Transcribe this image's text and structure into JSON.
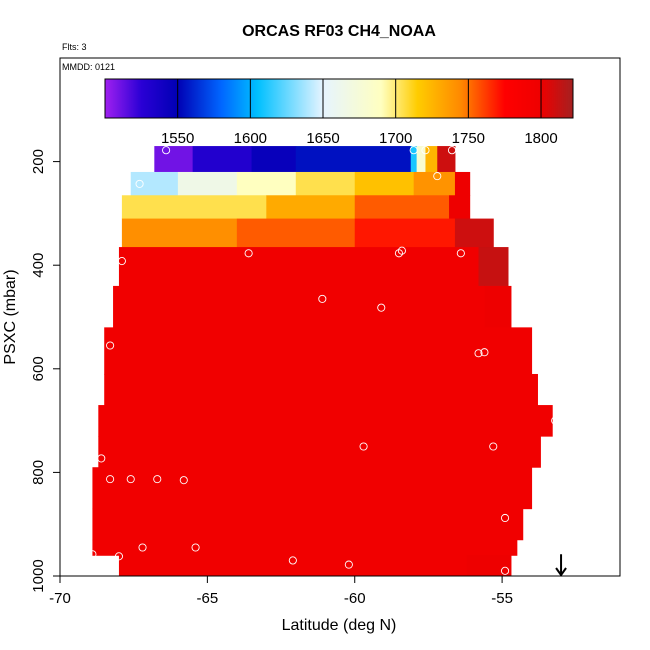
{
  "chart_data": {
    "type": "heatmap",
    "title": "ORCAS RF03 CH4_NOAA",
    "notes": {
      "flights": "Flts: 3",
      "date": "MMDD: 0121"
    },
    "xlabel": "Latitude (deg N)",
    "ylabel": "PSXC (mbar)",
    "xlim": [
      -70,
      -51
    ],
    "ylim": [
      1000,
      0
    ],
    "x_ticks": [
      -70,
      -65,
      -60,
      -55
    ],
    "y_ticks": [
      200,
      400,
      600,
      800,
      1000
    ],
    "colorbar": {
      "range": [
        1500,
        1822
      ],
      "ticks": [
        1550,
        1600,
        1650,
        1700,
        1750,
        1800
      ],
      "stops": [
        {
          "v": 1500,
          "c": "#a020f0"
        },
        {
          "v": 1525,
          "c": "#2a00d5"
        },
        {
          "v": 1550,
          "c": "#0000b4"
        },
        {
          "v": 1580,
          "c": "#0066ff"
        },
        {
          "v": 1605,
          "c": "#00c0ff"
        },
        {
          "v": 1650,
          "c": "#e6f4ff"
        },
        {
          "v": 1690,
          "c": "#ffffc0"
        },
        {
          "v": 1715,
          "c": "#ffcc00"
        },
        {
          "v": 1745,
          "c": "#ff8800"
        },
        {
          "v": 1775,
          "c": "#ff0000"
        },
        {
          "v": 1800,
          "c": "#ee0000"
        },
        {
          "v": 1822,
          "c": "#a52020"
        }
      ]
    },
    "rows": [
      {
        "p0": 170,
        "p1": 220,
        "x0": -66.8,
        "x1": -56.6,
        "cells": [
          {
            "x0": -66.8,
            "x1": -65.5,
            "v": 1510
          },
          {
            "x0": -65.5,
            "x1": -63.5,
            "v": 1530
          },
          {
            "x0": -63.5,
            "x1": -62.0,
            "v": 1545
          },
          {
            "x0": -62.0,
            "x1": -58.1,
            "v": 1555
          },
          {
            "x0": -58.1,
            "x1": -57.9,
            "v": 1610
          },
          {
            "x0": -57.9,
            "x1": -57.6,
            "v": 1680
          },
          {
            "x0": -57.6,
            "x1": -57.2,
            "v": 1725
          },
          {
            "x0": -57.2,
            "x1": -56.6,
            "v": 1810
          }
        ]
      },
      {
        "p0": 220,
        "p1": 265,
        "x0": -67.6,
        "x1": -56.1,
        "cells": [
          {
            "x0": -67.6,
            "x1": -66.0,
            "v": 1640
          },
          {
            "x0": -66.0,
            "x1": -64.0,
            "v": 1665
          },
          {
            "x0": -64.0,
            "x1": -62.0,
            "v": 1690
          },
          {
            "x0": -62.0,
            "x1": -60.0,
            "v": 1705
          },
          {
            "x0": -60.0,
            "x1": -58.0,
            "v": 1720
          },
          {
            "x0": -58.0,
            "x1": -56.6,
            "v": 1740
          },
          {
            "x0": -56.6,
            "x1": -56.1,
            "v": 1800
          }
        ]
      },
      {
        "p0": 265,
        "p1": 310,
        "x0": -67.9,
        "x1": -56.1,
        "cells": [
          {
            "x0": -67.9,
            "x1": -63.0,
            "v": 1705
          },
          {
            "x0": -63.0,
            "x1": -60.0,
            "v": 1730
          },
          {
            "x0": -60.0,
            "x1": -56.8,
            "v": 1755
          },
          {
            "x0": -56.8,
            "x1": -56.1,
            "v": 1800
          }
        ]
      },
      {
        "p0": 310,
        "p1": 365,
        "x0": -67.9,
        "x1": -55.3,
        "cells": [
          {
            "x0": -67.9,
            "x1": -64.0,
            "v": 1742
          },
          {
            "x0": -64.0,
            "x1": -60.0,
            "v": 1755
          },
          {
            "x0": -60.0,
            "x1": -56.6,
            "v": 1770
          },
          {
            "x0": -56.6,
            "x1": -55.3,
            "v": 1810
          }
        ]
      },
      {
        "p0": 365,
        "p1": 440,
        "x0": -68.0,
        "x1": -54.8,
        "cells": [
          {
            "x0": -68.0,
            "x1": -55.8,
            "v": 1795
          },
          {
            "x0": -55.8,
            "x1": -54.8,
            "v": 1812
          }
        ]
      },
      {
        "p0": 440,
        "p1": 520,
        "x0": -68.2,
        "x1": -54.7,
        "cells": [
          {
            "x0": -68.2,
            "x1": -55.6,
            "v": 1795
          },
          {
            "x0": -55.6,
            "x1": -54.7,
            "v": 1800
          }
        ]
      },
      {
        "p0": 520,
        "p1": 610,
        "x0": -68.5,
        "x1": -54.0,
        "cells": [
          {
            "x0": -68.5,
            "x1": -54.0,
            "v": 1795
          }
        ]
      },
      {
        "p0": 610,
        "p1": 670,
        "x0": -68.5,
        "x1": -53.8,
        "cells": [
          {
            "x0": -68.5,
            "x1": -53.8,
            "v": 1795
          }
        ]
      },
      {
        "p0": 670,
        "p1": 730,
        "x0": -68.7,
        "x1": -53.3,
        "cells": [
          {
            "x0": -68.7,
            "x1": -53.3,
            "v": 1795
          }
        ]
      },
      {
        "p0": 730,
        "p1": 790,
        "x0": -68.7,
        "x1": -53.7,
        "cells": [
          {
            "x0": -68.7,
            "x1": -53.7,
            "v": 1795
          }
        ]
      },
      {
        "p0": 790,
        "p1": 870,
        "x0": -68.9,
        "x1": -54.0,
        "cells": [
          {
            "x0": -68.9,
            "x1": -54.0,
            "v": 1795
          }
        ]
      },
      {
        "p0": 870,
        "p1": 930,
        "x0": -68.9,
        "x1": -54.3,
        "cells": [
          {
            "x0": -68.9,
            "x1": -54.3,
            "v": 1795
          }
        ]
      },
      {
        "p0": 930,
        "p1": 960,
        "x0": -68.9,
        "x1": -54.5,
        "cells": [
          {
            "x0": -68.9,
            "x1": -54.5,
            "v": 1795
          }
        ]
      },
      {
        "p0": 960,
        "p1": 1000,
        "x0": -68.0,
        "x1": -54.7,
        "cells": [
          {
            "x0": -68.0,
            "x1": -56.2,
            "v": 1795
          },
          {
            "x0": -56.2,
            "x1": -54.7,
            "v": 1800
          }
        ]
      }
    ],
    "points": [
      {
        "x": -66.4,
        "p": 178
      },
      {
        "x": -58.0,
        "p": 178
      },
      {
        "x": -57.6,
        "p": 178
      },
      {
        "x": -56.7,
        "p": 178
      },
      {
        "x": -67.3,
        "p": 243
      },
      {
        "x": -57.2,
        "p": 228
      },
      {
        "x": -67.9,
        "p": 392
      },
      {
        "x": -63.6,
        "p": 377
      },
      {
        "x": -58.5,
        "p": 377
      },
      {
        "x": -58.4,
        "p": 372
      },
      {
        "x": -56.4,
        "p": 377
      },
      {
        "x": -61.1,
        "p": 465
      },
      {
        "x": -59.1,
        "p": 482
      },
      {
        "x": -68.3,
        "p": 555
      },
      {
        "x": -55.8,
        "p": 570
      },
      {
        "x": -55.6,
        "p": 568
      },
      {
        "x": -53.2,
        "p": 700
      },
      {
        "x": -59.7,
        "p": 750
      },
      {
        "x": -55.3,
        "p": 750
      },
      {
        "x": -68.6,
        "p": 773
      },
      {
        "x": -68.3,
        "p": 813
      },
      {
        "x": -67.6,
        "p": 813
      },
      {
        "x": -66.7,
        "p": 813
      },
      {
        "x": -65.8,
        "p": 815
      },
      {
        "x": -54.9,
        "p": 888
      },
      {
        "x": -67.2,
        "p": 945
      },
      {
        "x": -65.4,
        "p": 945
      },
      {
        "x": -68.9,
        "p": 958
      },
      {
        "x": -68.0,
        "p": 962
      },
      {
        "x": -62.1,
        "p": 970
      },
      {
        "x": -60.2,
        "p": 978
      },
      {
        "x": -54.9,
        "p": 990
      }
    ],
    "arrow": {
      "x": -53.0,
      "p_from": 958,
      "p_to": 1000
    }
  }
}
